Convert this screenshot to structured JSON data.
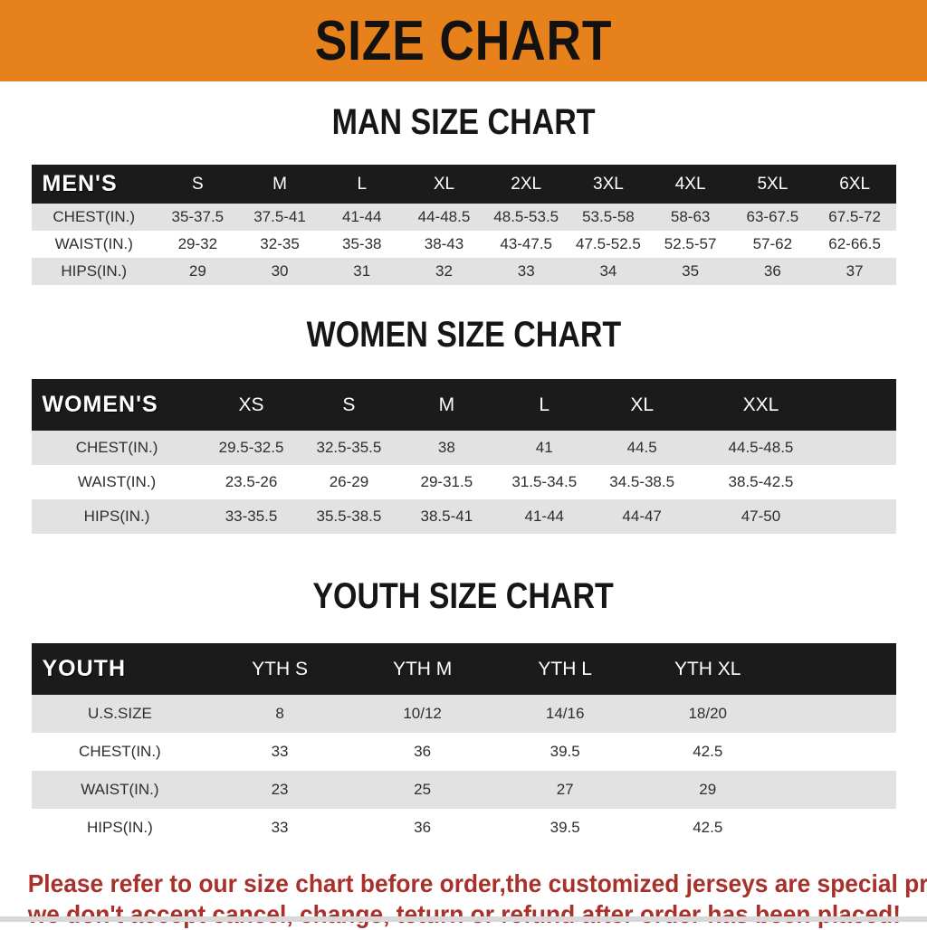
{
  "banner": {
    "title": "SIZE CHART"
  },
  "colors": {
    "banner_bg": "#E6811C",
    "table_header_bg": "#1B1B1B",
    "row_alt_gray": "#E2E2E2",
    "note_red": "#A9312B"
  },
  "sections": [
    {
      "heading": "MAN SIZE CHART",
      "table": {
        "label": "MEN'S",
        "columns": [
          "S",
          "M",
          "L",
          "XL",
          "2XL",
          "3XL",
          "4XL",
          "5XL",
          "6XL"
        ],
        "rows": [
          {
            "label": "CHEST(IN.)",
            "values": [
              "35-37.5",
              "37.5-41",
              "41-44",
              "44-48.5",
              "48.5-53.5",
              "53.5-58",
              "58-63",
              "63-67.5",
              "67.5-72"
            ]
          },
          {
            "label": "WAIST(IN.)",
            "values": [
              "29-32",
              "32-35",
              "35-38",
              "38-43",
              "43-47.5",
              "47.5-52.5",
              "52.5-57",
              "57-62",
              "62-66.5"
            ]
          },
          {
            "label": "HIPS(IN.)",
            "values": [
              "29",
              "30",
              "31",
              "32",
              "33",
              "34",
              "35",
              "36",
              "37"
            ]
          }
        ]
      }
    },
    {
      "heading": "WOMEN SIZE CHART",
      "table": {
        "label": "WOMEN'S",
        "columns": [
          "XS",
          "S",
          "M",
          "L",
          "XL",
          "XXL"
        ],
        "rows": [
          {
            "label": "CHEST(IN.)",
            "values": [
              "29.5-32.5",
              "32.5-35.5",
              "38",
              "41",
              "44.5",
              "44.5-48.5"
            ]
          },
          {
            "label": "WAIST(IN.)",
            "values": [
              "23.5-26",
              "26-29",
              "29-31.5",
              "31.5-34.5",
              "34.5-38.5",
              "38.5-42.5"
            ]
          },
          {
            "label": "HIPS(IN.)",
            "values": [
              "33-35.5",
              "35.5-38.5",
              "38.5-41",
              "41-44",
              "44-47",
              "47-50"
            ]
          }
        ]
      }
    },
    {
      "heading": "YOUTH SIZE CHART",
      "table": {
        "label": "YOUTH",
        "columns": [
          "YTH S",
          "YTH M",
          "YTH L",
          "YTH XL"
        ],
        "rows": [
          {
            "label": "U.S.SIZE",
            "values": [
              "8",
              "10/12",
              "14/16",
              "18/20"
            ]
          },
          {
            "label": "CHEST(IN.)",
            "values": [
              "33",
              "36",
              "39.5",
              "42.5"
            ]
          },
          {
            "label": "WAIST(IN.)",
            "values": [
              "23",
              "25",
              "27",
              "29"
            ]
          },
          {
            "label": "HIPS(IN.)",
            "values": [
              "33",
              "36",
              "39.5",
              "42.5"
            ]
          }
        ]
      }
    }
  ],
  "note": {
    "line1": "Please refer to our size chart before order,the customized jerseys are special products,",
    "line2": "we don't accept cancel, change, teturn or refund after order has been placed!"
  }
}
